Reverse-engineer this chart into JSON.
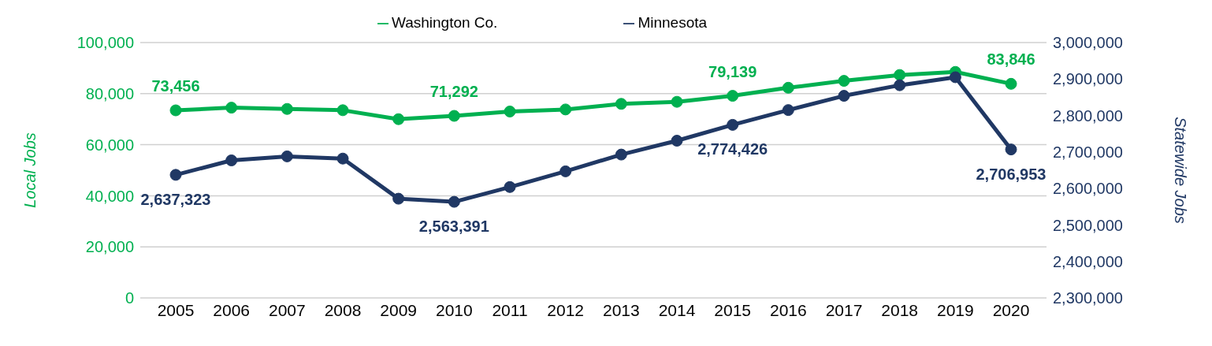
{
  "chart_data": {
    "type": "line",
    "categories": [
      "2005",
      "2006",
      "2007",
      "2008",
      "2009",
      "2010",
      "2011",
      "2012",
      "2013",
      "2014",
      "2015",
      "2016",
      "2017",
      "2018",
      "2019",
      "2020"
    ],
    "series": [
      {
        "name": "Washington Co.",
        "color": "#00b050",
        "values": [
          73456,
          74500,
          74000,
          73500,
          70000,
          71292,
          73000,
          73800,
          76000,
          76800,
          79139,
          82300,
          85000,
          87300,
          88500,
          83846
        ],
        "value_labels": [
          "73,456",
          null,
          null,
          null,
          null,
          "71,292",
          null,
          null,
          null,
          null,
          "79,139",
          null,
          null,
          null,
          null,
          "83,846"
        ]
      },
      {
        "name": "Minnesota",
        "color": "#203864",
        "axis": "y2",
        "values": [
          2637323,
          2677000,
          2688000,
          2682000,
          2572000,
          2563391,
          2604000,
          2647000,
          2693000,
          2731000,
          2774426,
          2815000,
          2854000,
          2883000,
          2905000,
          2706953
        ],
        "value_labels": [
          "2,637,323",
          null,
          null,
          null,
          null,
          "2,563,391",
          null,
          null,
          null,
          null,
          "2,774,426",
          null,
          null,
          null,
          null,
          "2,706,953"
        ]
      }
    ],
    "ylabel": "Local Jobs",
    "y2label": "Statewide Jobs",
    "ylim": [
      0,
      100000
    ],
    "yticks": [
      {
        "value": 0,
        "label": "0"
      },
      {
        "value": 20000,
        "label": "20,000"
      },
      {
        "value": 40000,
        "label": "40,000"
      },
      {
        "value": 60000,
        "label": "60,000"
      },
      {
        "value": 80000,
        "label": "80,000"
      },
      {
        "value": 100000,
        "label": "100,000"
      }
    ],
    "y2lim": [
      2300000,
      3000000
    ],
    "y2ticks": [
      {
        "value": 2300000,
        "label": "2,300,000"
      },
      {
        "value": 2400000,
        "label": "2,400,000"
      },
      {
        "value": 2500000,
        "label": "2,500,000"
      },
      {
        "value": 2600000,
        "label": "2,600,000"
      },
      {
        "value": 2700000,
        "label": "2,700,000"
      },
      {
        "value": 2800000,
        "label": "2,800,000"
      },
      {
        "value": 2900000,
        "label": "2,900,000"
      },
      {
        "value": 3000000,
        "label": "3,000,000"
      }
    ],
    "grid": "y",
    "legend": "top",
    "marker": "circle",
    "line_style": "solid"
  }
}
